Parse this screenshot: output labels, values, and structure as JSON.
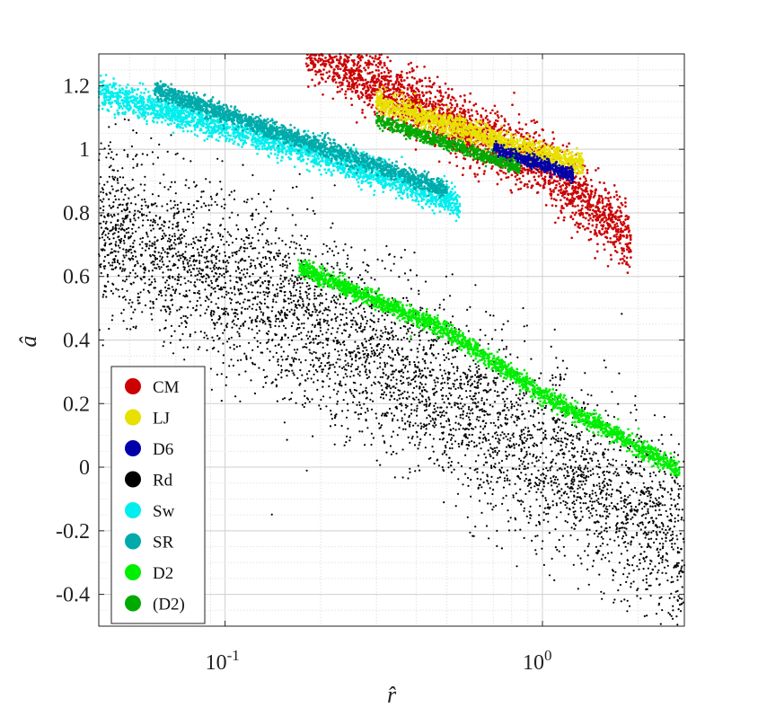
{
  "chart_data": {
    "type": "scatter",
    "title": "",
    "xlabel": "r̂",
    "ylabel": "â",
    "xscale": "log",
    "xlim": [
      0.04,
      2.8
    ],
    "ylim": [
      -0.5,
      1.3
    ],
    "x_tick_labels": [
      {
        "value": 0.1,
        "base": "10",
        "exp": "-1"
      },
      {
        "value": 1,
        "base": "10",
        "exp": "0"
      }
    ],
    "y_ticks": [
      1.2,
      1,
      0.8,
      0.6,
      0.4,
      0.2,
      0,
      -0.2,
      -0.4
    ],
    "y_tick_labels": [
      "1.2",
      "1",
      "0.8",
      "0.6",
      "0.4",
      "0.2",
      "0",
      "-0.2",
      "-0.4"
    ],
    "grid": true,
    "minor_grid": true,
    "legend": "bottom-left",
    "series": [
      {
        "name": "CM",
        "color": "#cc0000",
        "points": 2600,
        "band": {
          "x_range": [
            0.18,
            1.9
          ],
          "trend": [
            [
              0.18,
              1.33
            ],
            [
              0.5,
              1.08
            ],
            [
              1.0,
              0.95
            ],
            [
              1.6,
              0.78
            ]
          ],
          "spread": 0.05
        }
      },
      {
        "name": "LJ",
        "color": "#e8e000",
        "points": 1500,
        "band": {
          "x_range": [
            0.3,
            1.35
          ],
          "trend": [
            [
              0.3,
              1.15
            ],
            [
              0.7,
              1.03
            ],
            [
              1.35,
              0.95
            ]
          ],
          "spread": 0.018
        }
      },
      {
        "name": "D6",
        "color": "#0000aa",
        "points": 500,
        "band": {
          "x_range": [
            0.7,
            1.25
          ],
          "trend": [
            [
              0.7,
              1.0
            ],
            [
              1.25,
              0.92
            ]
          ],
          "spread": 0.01
        }
      },
      {
        "name": "Rd",
        "color": "#000000",
        "points": 4800,
        "band": {
          "x_range": [
            0.04,
            2.8
          ],
          "trend": [
            [
              0.04,
              0.75
            ],
            [
              0.1,
              0.6
            ],
            [
              0.3,
              0.35
            ],
            [
              1.0,
              0.05
            ],
            [
              2.8,
              -0.25
            ]
          ],
          "spread": 0.14
        }
      },
      {
        "name": "Sw",
        "color": "#00eeee",
        "points": 2400,
        "band": {
          "x_range": [
            0.04,
            0.55
          ],
          "trend": [
            [
              0.04,
              1.18
            ],
            [
              0.1,
              1.07
            ],
            [
              0.25,
              0.95
            ],
            [
              0.5,
              0.84
            ]
          ],
          "spread": 0.022
        }
      },
      {
        "name": "SR",
        "color": "#00aaaa",
        "points": 1800,
        "band": {
          "x_range": [
            0.06,
            0.5
          ],
          "trend": [
            [
              0.06,
              1.19
            ],
            [
              0.15,
              1.05
            ],
            [
              0.3,
              0.95
            ],
            [
              0.5,
              0.87
            ]
          ],
          "spread": 0.014
        }
      },
      {
        "name": "D2",
        "color": "#00ee00",
        "points": 2200,
        "band": {
          "x_range": [
            0.17,
            2.7
          ],
          "trend": [
            [
              0.17,
              0.63
            ],
            [
              0.5,
              0.43
            ],
            [
              1.0,
              0.23
            ],
            [
              2.7,
              -0.01
            ]
          ],
          "spread": 0.014
        }
      },
      {
        "name": "(D2)",
        "color": "#00aa00",
        "points": 700,
        "band": {
          "x_range": [
            0.3,
            0.85
          ],
          "trend": [
            [
              0.3,
              1.09
            ],
            [
              0.5,
              1.02
            ],
            [
              0.85,
              0.94
            ]
          ],
          "spread": 0.01
        }
      }
    ]
  }
}
